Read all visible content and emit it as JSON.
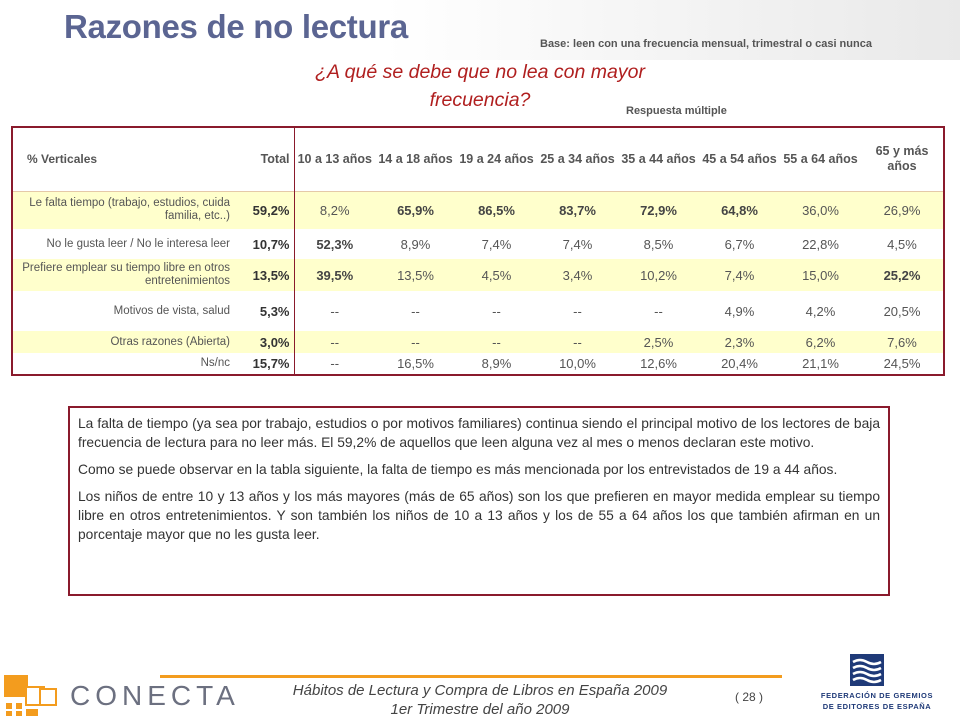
{
  "header": {
    "title": "Razones de no lectura",
    "base": "Base: leen con una frecuencia mensual, trimestral o casi nunca",
    "question_line1": "¿A qué se debe que no lea con mayor",
    "question_line2": "frecuencia?",
    "multiple": "Respuesta múltiple"
  },
  "table": {
    "headers": [
      "% Verticales",
      "Total",
      "10 a 13 años",
      "14 a 18 años",
      "19 a 24 años",
      "25 a 34 años",
      "35 a 44 años",
      "45 a 54 años",
      "55 a 64 años",
      "65 y más años"
    ],
    "rows": [
      {
        "label": "Le falta tiempo (trabajo, estudios, cuida familia, etc..)",
        "total": "59,2%",
        "values": [
          "8,2%",
          "65,9%",
          "86,5%",
          "83,7%",
          "72,9%",
          "64,8%",
          "36,0%",
          "26,9%"
        ]
      },
      {
        "label": "No le gusta leer / No le interesa leer",
        "total": "10,7%",
        "values": [
          "52,3%",
          "8,9%",
          "7,4%",
          "7,4%",
          "8,5%",
          "6,7%",
          "22,8%",
          "4,5%"
        ]
      },
      {
        "label": "Prefiere emplear su tiempo libre en otros entretenimientos",
        "total": "13,5%",
        "values": [
          "39,5%",
          "13,5%",
          "4,5%",
          "3,4%",
          "10,2%",
          "7,4%",
          "15,0%",
          "25,2%"
        ]
      },
      {
        "label": "Motivos de vista, salud",
        "total": "5,3%",
        "values": [
          "--",
          "--",
          "--",
          "--",
          "--",
          "4,9%",
          "4,2%",
          "20,5%"
        ]
      },
      {
        "label": "Otras razones (Abierta)",
        "total": "3,0%",
        "values": [
          "--",
          "--",
          "--",
          "--",
          "2,5%",
          "2,3%",
          "6,2%",
          "7,6%"
        ]
      },
      {
        "label": "Ns/nc",
        "total": "15,7%",
        "values": [
          "--",
          "16,5%",
          "8,9%",
          "10,0%",
          "12,6%",
          "20,4%",
          "21,1%",
          "24,5%"
        ]
      }
    ]
  },
  "text": {
    "p1": "La falta de tiempo (ya sea por trabajo, estudios o por motivos familiares) continua siendo el principal motivo de los lectores de baja frecuencia de lectura para no leer más. El 59,2% de aquellos que leen alguna vez al mes o menos declaran este motivo.",
    "p2": "Como se puede observar en la tabla siguiente, la falta de tiempo es más mencionada por los entrevistados de 19 a 44 años.",
    "p3": "Los niños de entre 10 y 13 años y  los más mayores (más de 65 años) son los que prefieren en mayor medida emplear su tiempo libre en otros entretenimientos. Y son también los niños de 10 a 13 años y los de 55 a 64 años los que también afirman en un porcentaje mayor que no les gusta leer."
  },
  "footer": {
    "line1": "Hábitos de Lectura y Compra de Libros en España 2009",
    "line2": "1er Trimestre del año 2009",
    "page": "( 28 )",
    "logo_left": "CONECTA",
    "logo_right_line1": "FEDERACIÓN DE GREMIOS",
    "logo_right_line2": "DE EDITORES DE ESPAÑA"
  },
  "colors": {
    "title": "#5b6592",
    "question": "#b01f1f",
    "border": "#8a1a2c",
    "highlight": "#ffffcc",
    "accent_orange": "#f39c1e",
    "fge_blue": "#1f3a78"
  }
}
